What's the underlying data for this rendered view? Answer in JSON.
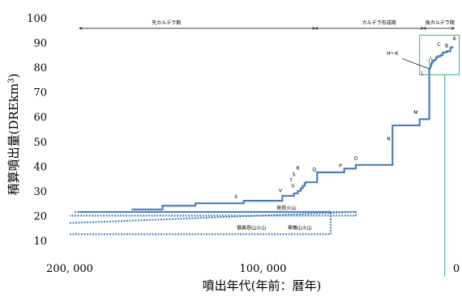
{
  "chart_data": {
    "type": "line",
    "title": "",
    "xlabel": "噴出年代(年前：暦年)",
    "ylabel": "積算噴出量(DREkm³)",
    "ylabel_parts": {
      "main": "積算噴出量(DREkm",
      "sup": "3",
      "end": ")"
    },
    "xlim": [
      200000,
      0
    ],
    "ylim": [
      10,
      100
    ],
    "x_ticks": [
      {
        "value": 200000,
        "label": "200, 000"
      },
      {
        "value": 100000,
        "label": "100, 000"
      },
      {
        "value": 0,
        "label": "0"
      }
    ],
    "y_ticks": [
      10,
      20,
      30,
      40,
      50,
      60,
      70,
      80,
      90,
      100
    ],
    "grid": false,
    "periods": [
      {
        "label": "先カルデラ期",
        "from": 195000,
        "to": 73000,
        "label_at": 150000
      },
      {
        "label": "カルデラ形成期",
        "from": 73000,
        "to": 17000,
        "label_at": 40000
      },
      {
        "label": "後カルデラ期",
        "from": 17000,
        "to": 1000,
        "label_at": 8500
      }
    ],
    "series": [
      {
        "color": "#4a7ebb",
        "style": "step",
        "x": [
          168000,
          152000,
          135000,
          110000,
          90000,
          84000,
          82000,
          80500,
          79500,
          78500,
          78000,
          72000,
          58000,
          52000,
          33000,
          19000,
          14000,
          13500,
          13000,
          12500,
          11500,
          10500,
          9500,
          8000,
          7000,
          5000,
          3000,
          2000
        ],
        "y": [
          22.5,
          24,
          25,
          26,
          28,
          29,
          30,
          31,
          32,
          33,
          33.5,
          37.5,
          39,
          40.5,
          56.5,
          59,
          79.5,
          80.5,
          81.5,
          82.5,
          83,
          84,
          84.5,
          85,
          86,
          86.5,
          88,
          88.5
        ]
      },
      {
        "color": "#4a7ebb",
        "style": "dashed-box",
        "x": [
          200000,
          65000
        ],
        "y": [
          12.5,
          21.5
        ]
      },
      {
        "color": "#4a7ebb",
        "style": "dashed-wedge",
        "x": [
          200000,
          52000
        ],
        "y": [
          17,
          21.5
        ]
      }
    ],
    "annotations": [
      {
        "text": "X",
        "x": 114000,
        "y": 27
      },
      {
        "text": "V",
        "x": 91000,
        "y": 29.5
      },
      {
        "text": "U",
        "x": 84500,
        "y": 31.5
      },
      {
        "text": "T",
        "x": 85500,
        "y": 33.5
      },
      {
        "text": "S",
        "x": 84000,
        "y": 36
      },
      {
        "text": "R",
        "x": 82000,
        "y": 38.5
      },
      {
        "text": "Q",
        "x": 73500,
        "y": 38
      },
      {
        "text": "P",
        "x": 60000,
        "y": 39.5
      },
      {
        "text": "O",
        "x": 52000,
        "y": 42.5
      },
      {
        "text": "N",
        "x": 35000,
        "y": 50.5
      },
      {
        "text": "M",
        "x": 21000,
        "y": 61
      },
      {
        "text": "L",
        "x": 17500,
        "y": 77
      },
      {
        "text": "H～K",
        "x": 33000,
        "y": 85
      },
      {
        "text": "C",
        "x": 9000,
        "y": 88.5
      },
      {
        "text": "B",
        "x": 5000,
        "y": 88
      },
      {
        "text": "A",
        "x": 1000,
        "y": 91
      }
    ],
    "region_labels": [
      {
        "text": "発荷火山",
        "x": 88000,
        "y": 22.5
      },
      {
        "text": "御鼻部山火山",
        "x": 106000,
        "y": 14.5
      },
      {
        "text": "青橅山火山",
        "x": 81000,
        "y": 14.5
      }
    ],
    "marker": {
      "x": 6000,
      "color": "#3cb371"
    },
    "highlight_box": {
      "x": [
        19000,
        -1500
      ],
      "y": [
        77,
        93
      ],
      "color": "#3cb371"
    }
  }
}
